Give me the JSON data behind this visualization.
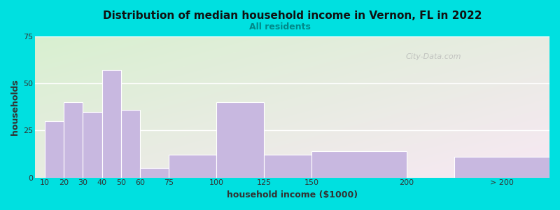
{
  "title": "Distribution of median household income in Vernon, FL in 2022",
  "subtitle": "All residents",
  "xlabel": "household income ($1000)",
  "ylabel": "households",
  "bar_color": "#c8b8e0",
  "bar_edge_color": "#ffffff",
  "background_outer": "#00e0e0",
  "watermark": "City-Data.com",
  "ylim": [
    0,
    75
  ],
  "yticks": [
    0,
    25,
    50,
    75
  ],
  "bar_lefts": [
    10,
    20,
    30,
    40,
    50,
    60,
    75,
    100,
    125,
    150,
    200,
    225
  ],
  "bar_rights": [
    20,
    30,
    40,
    50,
    60,
    75,
    100,
    125,
    150,
    200,
    225,
    275
  ],
  "values": [
    30,
    40,
    35,
    57,
    36,
    5,
    12,
    40,
    12,
    14,
    0,
    11
  ],
  "tick_positions": [
    10,
    20,
    30,
    40,
    50,
    60,
    75,
    100,
    125,
    150,
    200,
    250
  ],
  "tick_labels": [
    "10",
    "20",
    "30",
    "40",
    "50",
    "60",
    "75",
    "100",
    "125",
    "150",
    "200",
    "> 200"
  ],
  "xlim": [
    5,
    275
  ],
  "bg_colors_lr": [
    "#d8f0d0",
    "#f8e8f0"
  ],
  "bg_colors_tb": [
    "#e8f5e0",
    "#fce8f4"
  ]
}
